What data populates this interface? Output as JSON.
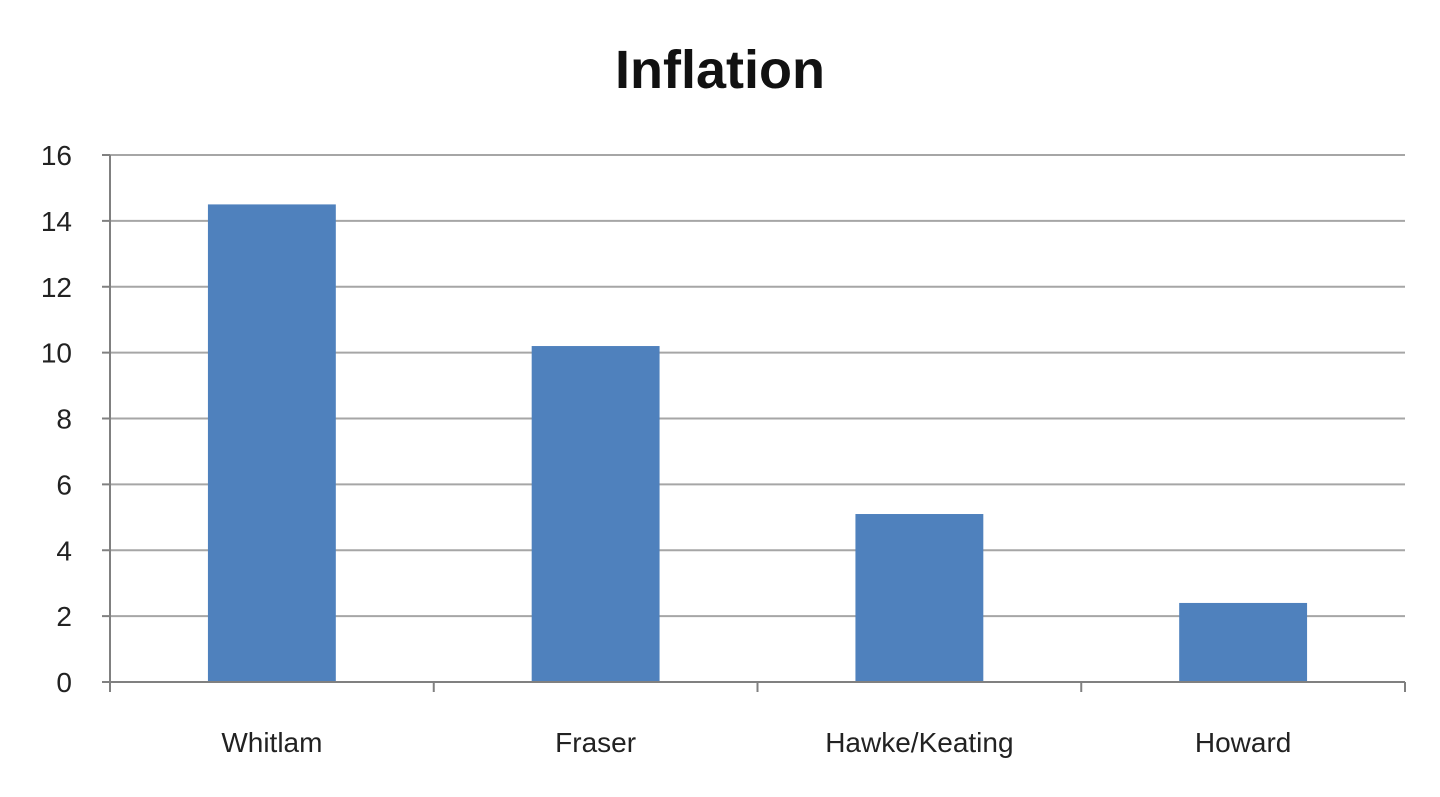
{
  "chart_data": {
    "type": "bar",
    "title": "Inflation",
    "xlabel": "",
    "ylabel": "",
    "categories": [
      "Whitlam",
      "Fraser",
      "Hawke/Keating",
      "Howard"
    ],
    "values": [
      14.5,
      10.2,
      5.1,
      2.4
    ],
    "ylim": [
      0,
      16
    ],
    "yticks": [
      "0",
      "2",
      "4",
      "6",
      "8",
      "10",
      "12",
      "14",
      "16"
    ],
    "grid": true,
    "legend": "none",
    "bar_color": "#4F81BD",
    "grid_color": "#A6A6A6"
  }
}
